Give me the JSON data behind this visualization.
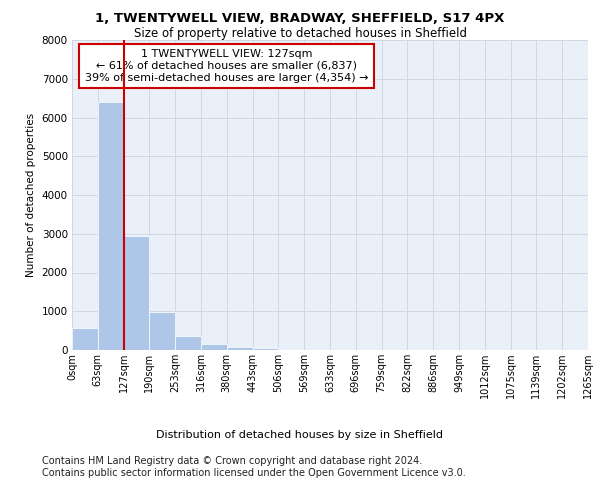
{
  "title_line1": "1, TWENTYWELL VIEW, BRADWAY, SHEFFIELD, S17 4PX",
  "title_line2": "Size of property relative to detached houses in Sheffield",
  "xlabel": "Distribution of detached houses by size in Sheffield",
  "ylabel": "Number of detached properties",
  "bin_labels": [
    "0sqm",
    "63sqm",
    "127sqm",
    "190sqm",
    "253sqm",
    "316sqm",
    "380sqm",
    "443sqm",
    "506sqm",
    "569sqm",
    "633sqm",
    "696sqm",
    "759sqm",
    "822sqm",
    "886sqm",
    "949sqm",
    "1012sqm",
    "1075sqm",
    "1139sqm",
    "1202sqm",
    "1265sqm"
  ],
  "bar_values": [
    560,
    6400,
    2930,
    980,
    350,
    160,
    90,
    60,
    0,
    0,
    0,
    0,
    0,
    0,
    0,
    0,
    0,
    0,
    0,
    0
  ],
  "bar_color": "#aec6e8",
  "vline_x": 2,
  "vline_color": "#cc0000",
  "annotation_text": "1 TWENTYWELL VIEW: 127sqm\n← 61% of detached houses are smaller (6,837)\n39% of semi-detached houses are larger (4,354) →",
  "annotation_box_edgecolor": "#cc0000",
  "annotation_fontsize": 8,
  "ylim": [
    0,
    8000
  ],
  "yticks": [
    0,
    1000,
    2000,
    3000,
    4000,
    5000,
    6000,
    7000,
    8000
  ],
  "grid_color": "#d0d8e8",
  "background_color": "#eaf0f8",
  "footer_text": "Contains HM Land Registry data © Crown copyright and database right 2024.\nContains public sector information licensed under the Open Government Licence v3.0.",
  "footer_fontsize": 7,
  "title1_fontsize": 9.5,
  "title2_fontsize": 8.5,
  "ylabel_fontsize": 7.5,
  "xlabel_fontsize": 8,
  "tick_fontsize": 7,
  "ytick_fontsize": 7.5
}
